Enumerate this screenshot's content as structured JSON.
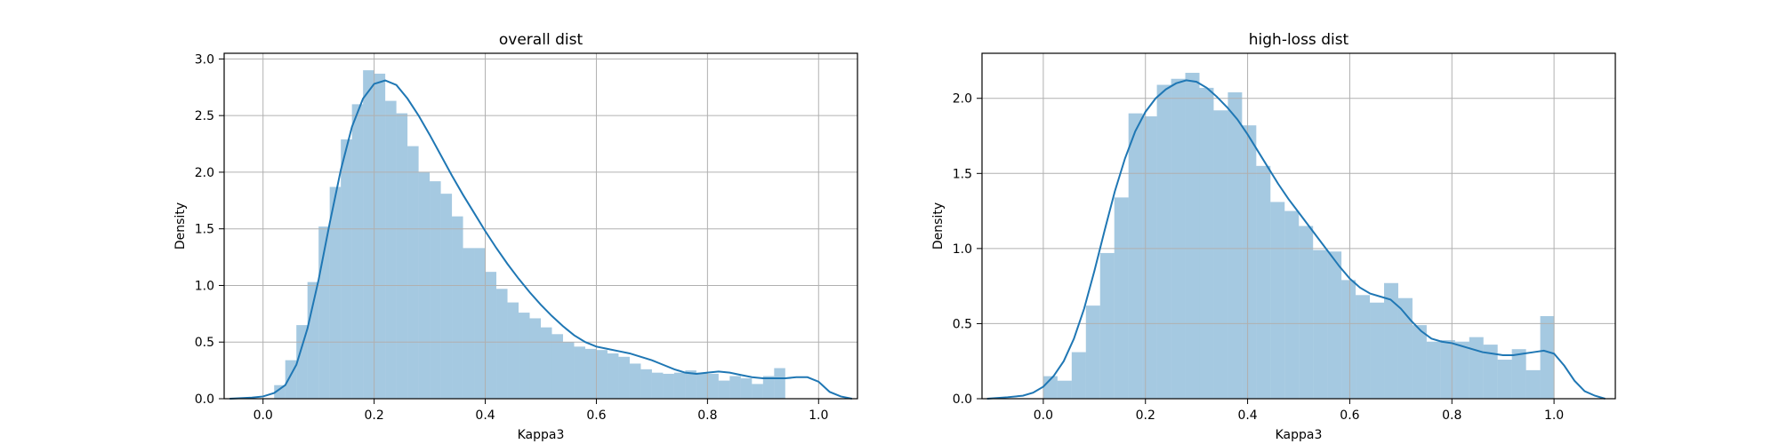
{
  "chart_data": [
    {
      "type": "bar",
      "subtype": "histogram-with-kde",
      "title": "overall dist",
      "xlabel": "Kappa3",
      "ylabel": "Density",
      "xlim": [
        -0.07,
        1.07
      ],
      "ylim": [
        0,
        3.05
      ],
      "xticks": [
        "0.0",
        "0.2",
        "0.4",
        "0.6",
        "0.8",
        "1.0"
      ],
      "xtick_values": [
        0,
        0.2,
        0.4,
        0.6,
        0.8,
        1.0
      ],
      "yticks": [
        "0.0",
        "0.5",
        "1.0",
        "1.5",
        "2.0",
        "2.5",
        "3.0"
      ],
      "ytick_values": [
        0,
        0.5,
        1.0,
        1.5,
        2.0,
        2.5,
        3.0
      ],
      "grid": true,
      "color": "#1f77b4",
      "bin_start": 0.02,
      "bin_width": 0.02,
      "values": [
        0.12,
        0.34,
        0.65,
        1.03,
        1.52,
        1.87,
        2.29,
        2.6,
        2.9,
        2.87,
        2.63,
        2.52,
        2.23,
        2.0,
        1.92,
        1.81,
        1.61,
        1.33,
        1.33,
        1.12,
        0.97,
        0.85,
        0.76,
        0.71,
        0.63,
        0.57,
        0.5,
        0.46,
        0.44,
        0.43,
        0.4,
        0.37,
        0.31,
        0.26,
        0.23,
        0.22,
        0.23,
        0.25,
        0.23,
        0.22,
        0.16,
        0.2,
        0.18,
        0.13,
        0.2,
        0.27
      ],
      "kde": {
        "x": [
          -0.06,
          -0.02,
          0.0,
          0.02,
          0.04,
          0.06,
          0.08,
          0.1,
          0.12,
          0.14,
          0.16,
          0.18,
          0.2,
          0.22,
          0.24,
          0.26,
          0.28,
          0.3,
          0.32,
          0.34,
          0.36,
          0.38,
          0.4,
          0.42,
          0.44,
          0.46,
          0.48,
          0.5,
          0.52,
          0.54,
          0.56,
          0.58,
          0.6,
          0.62,
          0.64,
          0.66,
          0.68,
          0.7,
          0.72,
          0.74,
          0.76,
          0.78,
          0.8,
          0.82,
          0.84,
          0.86,
          0.88,
          0.9,
          0.92,
          0.94,
          0.96,
          0.98,
          1.0,
          1.02,
          1.04,
          1.06
        ],
        "y": [
          0.0,
          0.01,
          0.02,
          0.05,
          0.12,
          0.3,
          0.62,
          1.05,
          1.55,
          2.02,
          2.4,
          2.65,
          2.78,
          2.81,
          2.77,
          2.65,
          2.5,
          2.33,
          2.15,
          1.97,
          1.8,
          1.64,
          1.48,
          1.33,
          1.19,
          1.06,
          0.94,
          0.83,
          0.73,
          0.64,
          0.56,
          0.5,
          0.46,
          0.44,
          0.42,
          0.4,
          0.37,
          0.34,
          0.3,
          0.26,
          0.23,
          0.22,
          0.23,
          0.24,
          0.23,
          0.21,
          0.19,
          0.18,
          0.18,
          0.18,
          0.19,
          0.19,
          0.15,
          0.06,
          0.02,
          0.0
        ]
      }
    },
    {
      "type": "bar",
      "subtype": "histogram-with-kde",
      "title": "high-loss dist",
      "xlabel": "Kappa3",
      "ylabel": "Density",
      "xlim": [
        -0.12,
        1.12
      ],
      "ylim": [
        0,
        2.3
      ],
      "xticks": [
        "0.0",
        "0.2",
        "0.4",
        "0.6",
        "0.8",
        "1.0"
      ],
      "xtick_values": [
        0,
        0.2,
        0.4,
        0.6,
        0.8,
        1.0
      ],
      "yticks": [
        "0.0",
        "0.5",
        "1.0",
        "1.5",
        "2.0"
      ],
      "ytick_values": [
        0,
        0.5,
        1.0,
        1.5,
        2.0
      ],
      "grid": true,
      "color": "#1f77b4",
      "bin_start": 0.0,
      "bin_width": 0.0278,
      "values": [
        0.15,
        0.12,
        0.31,
        0.62,
        0.97,
        1.34,
        1.9,
        1.88,
        2.09,
        2.13,
        2.17,
        2.07,
        1.92,
        2.04,
        1.82,
        1.55,
        1.31,
        1.25,
        1.15,
        0.99,
        0.98,
        0.79,
        0.69,
        0.64,
        0.77,
        0.67,
        0.49,
        0.38,
        0.39,
        0.38,
        0.41,
        0.36,
        0.26,
        0.33,
        0.19,
        0.55
      ],
      "kde": {
        "x": [
          -0.11,
          -0.07,
          -0.04,
          -0.02,
          0.0,
          0.02,
          0.04,
          0.06,
          0.08,
          0.1,
          0.12,
          0.14,
          0.16,
          0.18,
          0.2,
          0.22,
          0.24,
          0.26,
          0.28,
          0.3,
          0.32,
          0.34,
          0.36,
          0.38,
          0.4,
          0.42,
          0.44,
          0.46,
          0.48,
          0.5,
          0.52,
          0.54,
          0.56,
          0.58,
          0.6,
          0.62,
          0.64,
          0.66,
          0.68,
          0.7,
          0.72,
          0.74,
          0.76,
          0.78,
          0.8,
          0.82,
          0.84,
          0.86,
          0.88,
          0.9,
          0.92,
          0.94,
          0.96,
          0.98,
          1.0,
          1.02,
          1.04,
          1.06,
          1.08,
          1.1
        ],
        "y": [
          0.0,
          0.01,
          0.02,
          0.04,
          0.08,
          0.15,
          0.25,
          0.4,
          0.6,
          0.85,
          1.12,
          1.38,
          1.6,
          1.78,
          1.91,
          2.0,
          2.06,
          2.1,
          2.12,
          2.11,
          2.07,
          2.01,
          1.94,
          1.86,
          1.76,
          1.65,
          1.54,
          1.43,
          1.33,
          1.24,
          1.15,
          1.06,
          0.97,
          0.88,
          0.8,
          0.74,
          0.7,
          0.68,
          0.66,
          0.6,
          0.52,
          0.45,
          0.4,
          0.38,
          0.37,
          0.35,
          0.33,
          0.31,
          0.3,
          0.29,
          0.29,
          0.3,
          0.31,
          0.32,
          0.3,
          0.22,
          0.12,
          0.05,
          0.02,
          0.0
        ]
      }
    }
  ]
}
